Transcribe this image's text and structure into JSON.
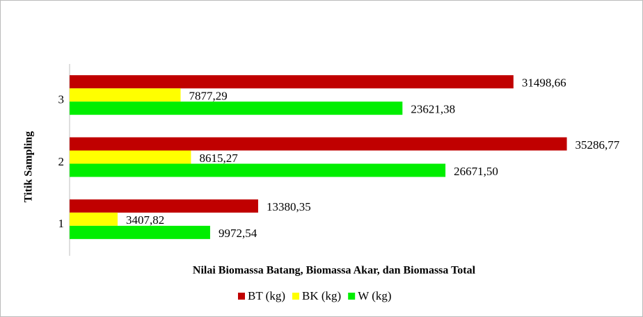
{
  "chart_data": {
    "type": "barh",
    "categories": [
      "1",
      "2",
      "3"
    ],
    "series": [
      {
        "name": "BT (kg)",
        "color": "#c00000",
        "values": [
          13380.35,
          35286.77,
          31498.66
        ],
        "value_labels": [
          "13380,35",
          "35286,77",
          "31498,66"
        ]
      },
      {
        "name": "BK (kg)",
        "color": "#ffff00",
        "values": [
          3407.82,
          8615.27,
          7877.29
        ],
        "value_labels": [
          "3407,82",
          "8615,27",
          "7877,29"
        ]
      },
      {
        "name": "W (kg)",
        "color": "#00ee00",
        "values": [
          9972.54,
          26671.5,
          23621.38
        ],
        "value_labels": [
          "9972,54",
          "26671,50",
          "23621,38"
        ]
      }
    ],
    "xlim": [
      0,
      40000
    ],
    "x_label": "Nilai Biomassa  Batang, Biomassa Akar,  dan Biomassa Total",
    "y_label": "Titik Sampling",
    "legend": "bottom"
  }
}
